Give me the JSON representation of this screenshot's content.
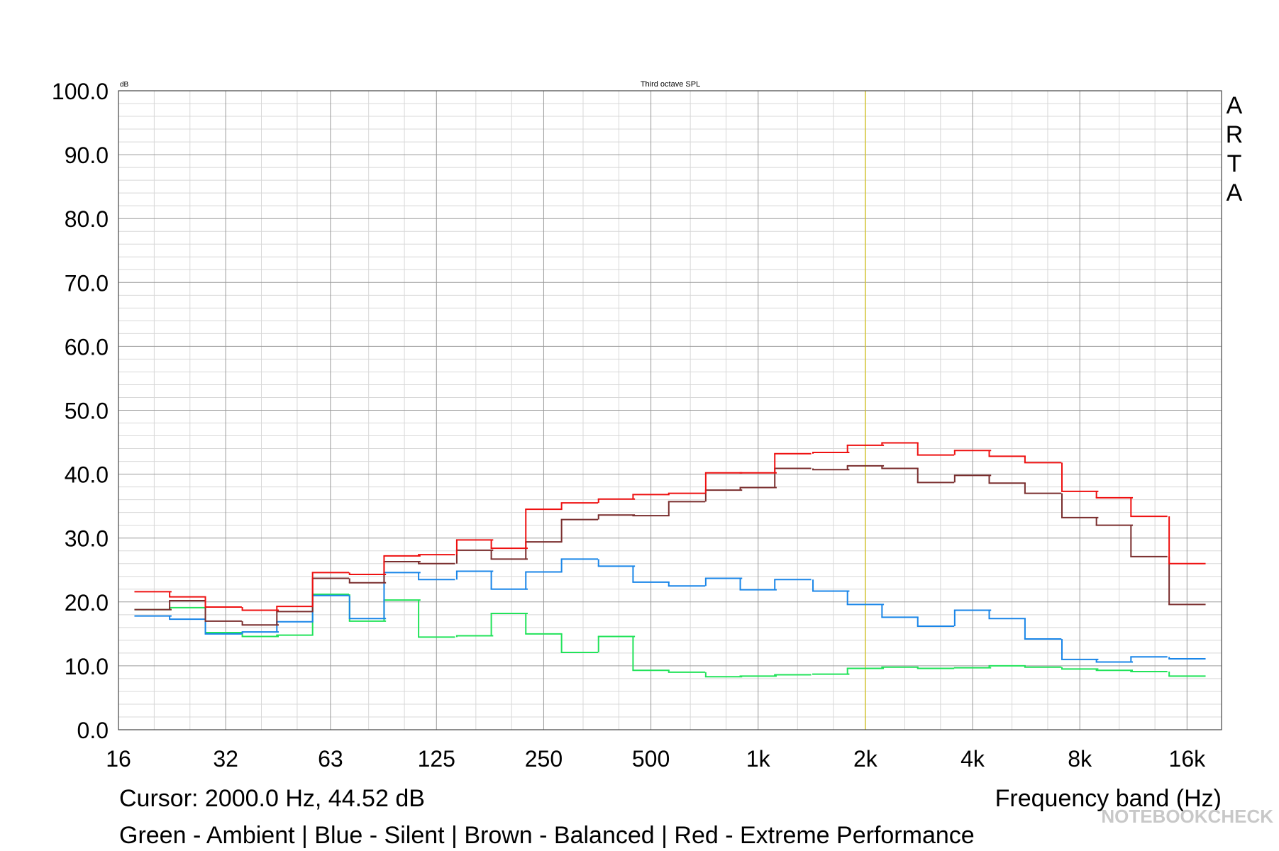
{
  "chart_data": {
    "type": "step",
    "title": "Third octave SPL",
    "y_unit": "dB",
    "brand": "ARTA",
    "x_label": "Frequency band (Hz)",
    "cursor_label": "Cursor:  2000.0 Hz, 44.52 dB",
    "cursor_x": 2000,
    "note": "Green - Ambient | Blue - Silent | Brown - Balanced | Red - Extreme Performance",
    "watermark": "NOTEBOOKCHECK",
    "log_x": true,
    "grid": true,
    "x": [
      20,
      25,
      31.5,
      40,
      50,
      63,
      80,
      100,
      125,
      160,
      200,
      250,
      315,
      400,
      500,
      630,
      800,
      1000,
      1250,
      1600,
      2000,
      2500,
      3150,
      4000,
      5000,
      6300,
      8000,
      10000,
      12500,
      16000
    ],
    "xlim": [
      16,
      20000
    ],
    "xticks": [
      16,
      32,
      63,
      125,
      250,
      500,
      {
        "value": 1000,
        "label": "1k"
      },
      {
        "value": 2000,
        "label": "2k"
      },
      {
        "value": 4000,
        "label": "4k"
      },
      {
        "value": 8000,
        "label": "8k"
      },
      {
        "value": 16000,
        "label": "16k"
      }
    ],
    "ylim": [
      0,
      100
    ],
    "yticks": [
      {
        "value": 0,
        "label": "0.0"
      },
      {
        "value": 10,
        "label": "10.0"
      },
      {
        "value": 20,
        "label": "20.0"
      },
      {
        "value": 30,
        "label": "30.0"
      },
      {
        "value": 40,
        "label": "40.0"
      },
      {
        "value": 50,
        "label": "50.0"
      },
      {
        "value": 60,
        "label": "60.0"
      },
      {
        "value": 70,
        "label": "70.0"
      },
      {
        "value": 80,
        "label": "80.0"
      },
      {
        "value": 90,
        "label": "90.0"
      },
      {
        "value": 100,
        "label": "100.0"
      }
    ],
    "series": [
      {
        "color": "#22e35a",
        "values": [
          18.8,
          19.1,
          15.2,
          14.6,
          14.8,
          21.2,
          17.0,
          20.3,
          14.5,
          14.7,
          18.2,
          15.0,
          12.1,
          14.6,
          9.3,
          9.0,
          8.3,
          8.4,
          8.6,
          8.7,
          9.6,
          9.8,
          9.6,
          9.7,
          10.0,
          9.8,
          9.5,
          9.3,
          9.1,
          8.4
        ]
      },
      {
        "color": "#1a86e8",
        "values": [
          17.8,
          17.3,
          15.0,
          15.3,
          16.9,
          21.0,
          17.4,
          24.6,
          23.5,
          24.8,
          22.0,
          24.7,
          26.7,
          25.6,
          23.1,
          22.5,
          23.7,
          21.9,
          23.5,
          21.7,
          19.6,
          17.6,
          16.2,
          18.7,
          17.4,
          14.2,
          11.0,
          10.6,
          11.4,
          11.1
        ]
      },
      {
        "color": "#7a2e2e",
        "values": [
          18.8,
          20.2,
          17.0,
          16.4,
          18.5,
          23.7,
          23.0,
          26.3,
          26.0,
          28.1,
          26.7,
          29.4,
          32.9,
          33.6,
          33.5,
          35.7,
          37.5,
          37.9,
          40.9,
          40.7,
          41.3,
          40.9,
          38.7,
          39.8,
          38.6,
          37.0,
          33.2,
          32.0,
          27.1,
          19.6
        ]
      },
      {
        "color": "#ee1111",
        "values": [
          21.6,
          20.8,
          19.2,
          18.7,
          19.3,
          24.6,
          24.3,
          27.2,
          27.4,
          29.7,
          28.4,
          34.5,
          35.5,
          36.1,
          36.8,
          37.0,
          40.2,
          40.2,
          43.2,
          43.4,
          44.52,
          44.9,
          43.0,
          43.7,
          42.8,
          41.8,
          37.3,
          36.3,
          33.4,
          26.0
        ]
      }
    ]
  }
}
